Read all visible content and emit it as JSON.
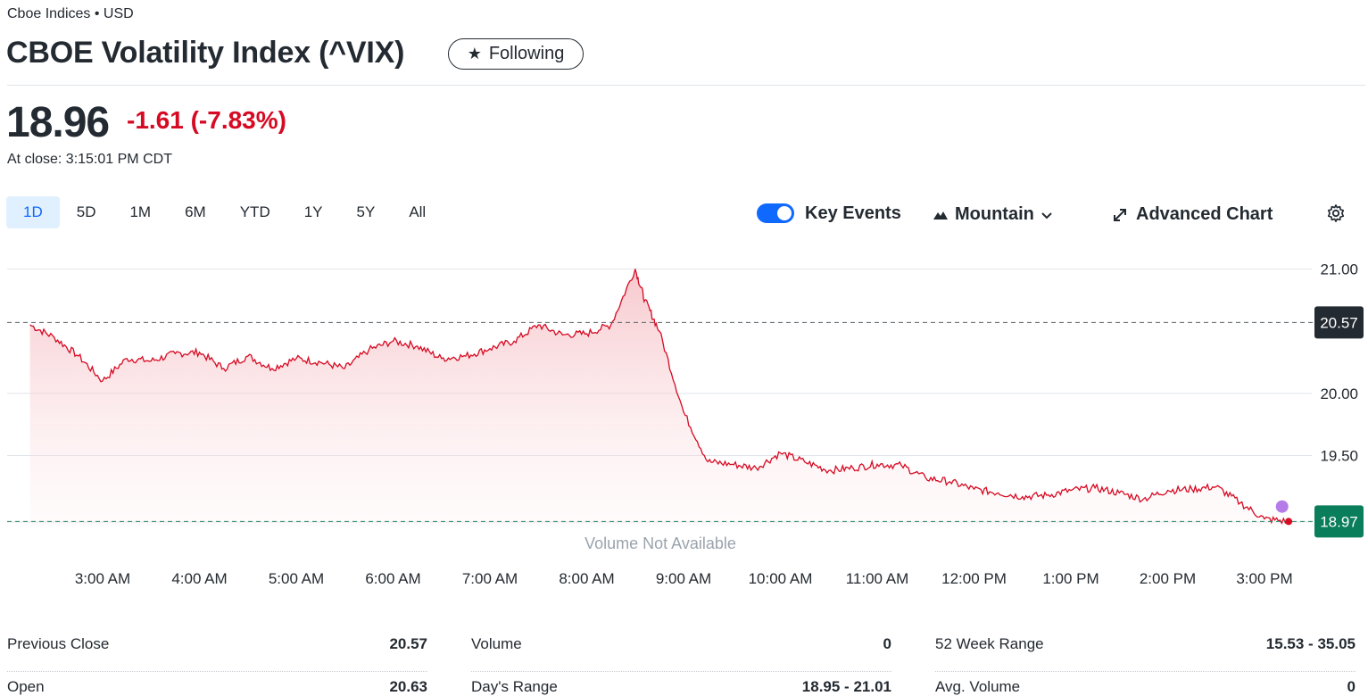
{
  "header": {
    "exchange": "Cboe Indices • USD",
    "title": "CBOE Volatility Index (^VIX)",
    "follow_label": "Following"
  },
  "quote": {
    "price": "18.96",
    "change": "-1.61",
    "change_percent": "(-7.83%)",
    "close_time": "At close: 3:15:01 PM CDT",
    "change_color": "#d60a22"
  },
  "range_tabs": [
    "1D",
    "5D",
    "1M",
    "6M",
    "YTD",
    "1Y",
    "5Y",
    "All"
  ],
  "active_range": "1D",
  "toolbar": {
    "key_events_label": "Key Events",
    "key_events_on": true,
    "chart_type_label": "Mountain",
    "advanced_chart_label": "Advanced Chart",
    "icons": [
      "mountain-icon",
      "chevron-down-icon",
      "expand-icon",
      "gear-icon"
    ]
  },
  "chart_data": {
    "type": "area",
    "x_ticks": [
      "3:00 AM",
      "4:00 AM",
      "5:00 AM",
      "6:00 AM",
      "7:00 AM",
      "8:00 AM",
      "9:00 AM",
      "10:00 AM",
      "11:00 AM",
      "12:00 PM",
      "1:00 PM",
      "2:00 PM",
      "3:00 PM"
    ],
    "y_ticks": [
      "21.00",
      "20.00",
      "19.50"
    ],
    "ylim": [
      18.93,
      21.01
    ],
    "previous_close": 20.57,
    "previous_close_label": "20.57",
    "current_label": "18.97",
    "volume_note": "Volume Not Available",
    "line_color": "#d60a22",
    "x": [
      2.25,
      2.5,
      2.75,
      3.0,
      3.25,
      3.5,
      3.75,
      4.0,
      4.25,
      4.5,
      4.75,
      5.0,
      5.25,
      5.5,
      5.75,
      6.0,
      6.25,
      6.5,
      6.75,
      7.0,
      7.25,
      7.5,
      7.75,
      8.0,
      8.25,
      8.5,
      8.6,
      8.75,
      9.0,
      9.25,
      9.5,
      9.75,
      10.0,
      10.25,
      10.5,
      10.75,
      11.0,
      11.25,
      11.5,
      11.75,
      12.0,
      12.25,
      12.5,
      12.75,
      13.0,
      13.25,
      13.5,
      13.75,
      14.0,
      14.25,
      14.5,
      14.75,
      15.0,
      15.25
    ],
    "y": [
      20.55,
      20.45,
      20.3,
      20.1,
      20.28,
      20.26,
      20.32,
      20.33,
      20.2,
      20.3,
      20.2,
      20.28,
      20.25,
      20.2,
      20.35,
      20.42,
      20.38,
      20.28,
      20.3,
      20.36,
      20.42,
      20.55,
      20.47,
      20.48,
      20.55,
      21.0,
      20.75,
      20.5,
      19.85,
      19.45,
      19.43,
      19.4,
      19.52,
      19.45,
      19.38,
      19.4,
      19.43,
      19.42,
      19.32,
      19.29,
      19.23,
      19.2,
      19.17,
      19.18,
      19.22,
      19.24,
      19.2,
      19.15,
      19.22,
      19.23,
      19.25,
      19.12,
      18.99,
      18.97
    ],
    "markers": [
      {
        "x": 15.2,
        "y": 19.09,
        "color": "#b57be8"
      },
      {
        "x": 15.25,
        "y": 18.97,
        "color": "#d60a22"
      }
    ]
  },
  "stats": {
    "columns": [
      [
        {
          "label": "Previous Close",
          "value": "20.57"
        },
        {
          "label": "Open",
          "value": "20.63"
        }
      ],
      [
        {
          "label": "Volume",
          "value": "0"
        },
        {
          "label": "Day's Range",
          "value": "18.95 - 21.01"
        }
      ],
      [
        {
          "label": "52 Week Range",
          "value": "15.53 - 35.05"
        },
        {
          "label": "Avg. Volume",
          "value": "0"
        }
      ]
    ]
  }
}
